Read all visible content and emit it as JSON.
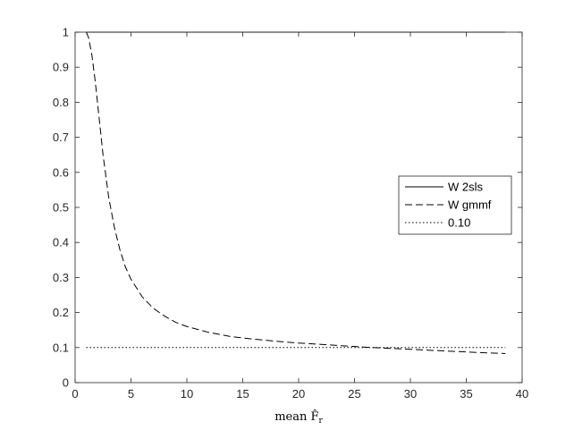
{
  "chart_data": {
    "type": "line",
    "title": "",
    "xlabel": "mean F̂",
    "xlabel_subscript": "r",
    "ylabel": "",
    "xlim": [
      0,
      40
    ],
    "ylim": [
      0,
      1
    ],
    "x_ticks": [
      0,
      5,
      10,
      15,
      20,
      25,
      30,
      35,
      40
    ],
    "y_ticks": [
      0,
      0.1,
      0.2,
      0.3,
      0.4,
      0.5,
      0.6,
      0.7,
      0.8,
      0.9,
      1
    ],
    "x_tick_labels": [
      "0",
      "5",
      "10",
      "15",
      "20",
      "25",
      "30",
      "35",
      "40"
    ],
    "y_tick_labels": [
      "0",
      "0.1",
      "0.2",
      "0.3",
      "0.4",
      "0.5",
      "0.6",
      "0.7",
      "0.8",
      "0.9",
      "1"
    ],
    "grid": false,
    "legend_position": "right",
    "series": [
      {
        "name": "W 2sls",
        "style": "solid",
        "color": "#000000",
        "x": [
          1,
          38.5
        ],
        "y": [
          1,
          1
        ]
      },
      {
        "name": "W gmmf",
        "style": "dashed",
        "color": "#000000",
        "x": [
          1,
          1.2,
          1.5,
          1.8,
          2,
          2.5,
          3,
          3.5,
          4,
          4.5,
          5,
          6,
          7,
          8,
          9,
          10,
          12,
          14,
          16,
          18,
          20,
          22,
          24,
          26,
          28,
          30,
          32,
          34,
          36,
          38.5
        ],
        "y": [
          1,
          0.985,
          0.935,
          0.86,
          0.8,
          0.65,
          0.53,
          0.445,
          0.38,
          0.33,
          0.295,
          0.245,
          0.212,
          0.19,
          0.172,
          0.16,
          0.143,
          0.131,
          0.124,
          0.118,
          0.113,
          0.109,
          0.105,
          0.101,
          0.098,
          0.095,
          0.092,
          0.089,
          0.086,
          0.083
        ]
      },
      {
        "name": "0.10",
        "style": "dotted",
        "color": "#000000",
        "x": [
          1,
          38.5
        ],
        "y": [
          0.1,
          0.1
        ]
      }
    ]
  }
}
